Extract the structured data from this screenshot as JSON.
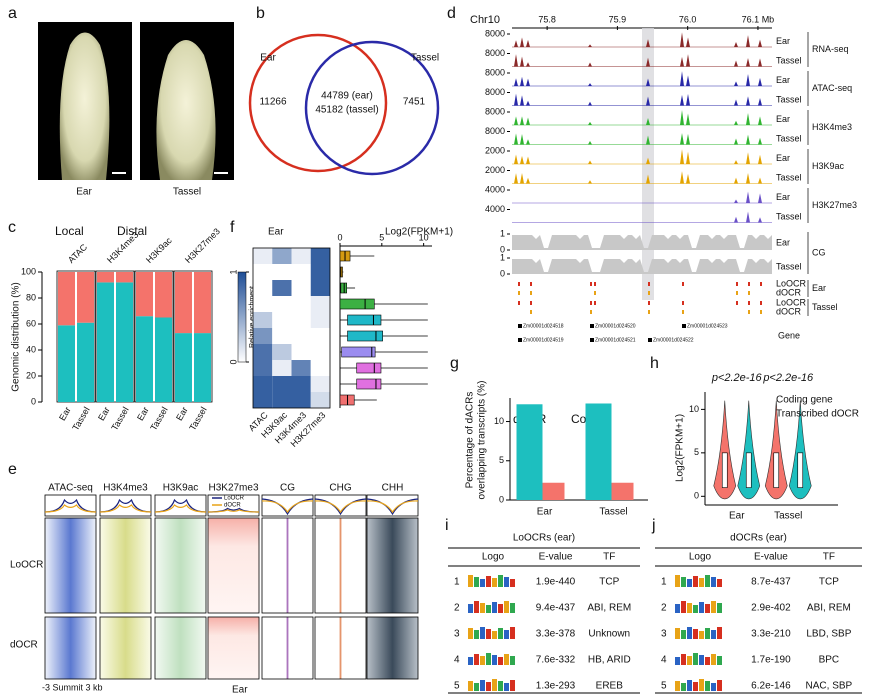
{
  "panel_labels": [
    "a",
    "b",
    "c",
    "d",
    "e",
    "f",
    "g",
    "h",
    "i",
    "j"
  ],
  "a": {
    "labels": [
      "Ear",
      "Tassel"
    ]
  },
  "b": {
    "sets": [
      "Ear",
      "Tassel"
    ],
    "left_only": 11266,
    "shared": [
      "44789 (ear)",
      "45182 (tassel)"
    ],
    "right_only": 7451
  },
  "c": {
    "type": "bar",
    "stacked": true,
    "ylabel": "Genomic distribution (%)",
    "groups": [
      "ATAC",
      "H3K4me3",
      "H3K9ac",
      "H3K27me3"
    ],
    "categories": [
      "Ear",
      "Tassel",
      "Ear",
      "Tassel",
      "Ear",
      "Tassel",
      "Ear",
      "Tassel"
    ],
    "series": [
      {
        "name": "Local",
        "color": "#1dbfbf",
        "values": [
          59,
          61,
          92,
          92,
          66,
          65,
          53,
          53
        ]
      },
      {
        "name": "Distal",
        "color": "#f4736b",
        "values": [
          41,
          39,
          8,
          8,
          34,
          35,
          47,
          47
        ]
      }
    ],
    "ylim": [
      0,
      100
    ],
    "yticks": [
      0,
      20,
      40,
      60,
      80,
      100
    ]
  },
  "d": {
    "chromosome": "Chr10",
    "xlim": [
      75.75,
      76.12
    ],
    "xticks": [
      75.8,
      75.9,
      {
        "value": 76.0,
        "label": "76.0"
      },
      {
        "value": 76.1,
        "label": "76.1 Mb"
      }
    ],
    "groups": [
      {
        "name": "RNA-seq",
        "samples": [
          "Ear",
          "Tassel"
        ],
        "ymax": [
          8000,
          8000
        ],
        "color": "#8b2a2a"
      },
      {
        "name": "ATAC-seq",
        "samples": [
          "Ear",
          "Tassel"
        ],
        "ymax": [
          8000,
          8000
        ],
        "color": "#2828a8"
      },
      {
        "name": "H3K4me3",
        "samples": [
          "Ear",
          "Tassel"
        ],
        "ymax": [
          8000,
          8000
        ],
        "color": "#30b530"
      },
      {
        "name": "H3K9ac",
        "samples": [
          "Ear",
          "Tassel"
        ],
        "ymax": [
          2000,
          2000
        ],
        "color": "#e3a400"
      },
      {
        "name": "H3K27me3",
        "samples": [
          "Ear",
          "Tassel"
        ],
        "ymax": [
          4000,
          4000
        ],
        "color": "#6a50c8"
      },
      {
        "name": "CG",
        "samples": [
          "Ear",
          "Tassel"
        ],
        "ymax": [
          1,
          1
        ],
        "ymin": [
          0,
          0
        ],
        "color": "#c8c8c8"
      }
    ],
    "ocr": {
      "rows": [
        "LoOCR",
        "dOCR",
        "LoOCR",
        "dOCR"
      ],
      "samples": [
        "Ear",
        "Tassel"
      ]
    },
    "gene_label": "Gene",
    "genes": [
      "Zm00001d024518",
      "Zm00001d024520",
      "Zm00001d024523",
      "Zm00001d024519",
      "Zm00001d024521",
      "Zm00001d024522"
    ]
  },
  "e": {
    "columns": [
      "ATAC-seq",
      "H3K4me3",
      "H3K9ac",
      "H3K27me3",
      "CG",
      "CHG",
      "CHH"
    ],
    "rows": [
      "LoOCR",
      "dOCR"
    ],
    "legend": [
      {
        "name": "LoOCR",
        "color": "#1a237e"
      },
      {
        "name": "dOCR",
        "color": "#e8a317"
      }
    ],
    "x_axis": "-3 Summit 3 kb",
    "sample": "Ear"
  },
  "f": {
    "sample": "Ear",
    "colorbar_label": "Relative enrichment",
    "colorbar_ticks": [
      0,
      1
    ],
    "marks": [
      "ATAC",
      "H3K9ac",
      "H3K4me3",
      "H3K27me3"
    ],
    "matrix": [
      [
        0.1,
        0.5,
        0.1,
        0.9
      ],
      [
        0,
        0,
        0,
        0.9
      ],
      [
        0,
        0.8,
        0,
        0.9
      ],
      [
        0,
        0,
        0,
        0.1
      ],
      [
        0.3,
        0,
        0,
        0.1
      ],
      [
        0.6,
        0,
        0,
        0
      ],
      [
        0.8,
        0.3,
        0,
        0
      ],
      [
        0.8,
        0.1,
        0.7,
        0
      ],
      [
        0.9,
        0.9,
        0.9,
        0.1
      ],
      [
        0.9,
        0.9,
        0.9,
        0.2
      ]
    ],
    "box_axis": "Log2(FPKM+1)",
    "xlim": [
      0,
      11
    ],
    "xticks": [
      0,
      5,
      10
    ],
    "boxes": [
      {
        "color": "#d49a10",
        "min": 0,
        "q1": 0,
        "median": 0.6,
        "q3": 1.2,
        "max": 4.1
      },
      {
        "color": "#d49a10",
        "min": 0,
        "q1": 0,
        "median": 0.1,
        "q3": 0.3,
        "max": 0.4
      },
      {
        "color": "#3cb043",
        "min": 0,
        "q1": 0.1,
        "median": 0.5,
        "q3": 0.8,
        "max": 1.8
      },
      {
        "color": "#3cb043",
        "min": 0,
        "q1": 0,
        "median": 3,
        "q3": 4.1,
        "max": 10.5
      },
      {
        "color": "#1fb8c8",
        "min": 0,
        "q1": 0.9,
        "median": 4,
        "q3": 4.9,
        "max": 10.5
      },
      {
        "color": "#1fb8c8",
        "min": 0,
        "q1": 0.9,
        "median": 4.3,
        "q3": 5.1,
        "max": 10.5
      },
      {
        "color": "#9b8cf0",
        "min": 0,
        "q1": 0.2,
        "median": 3.8,
        "q3": 4.2,
        "max": 10.5
      },
      {
        "color": "#e070e0",
        "min": 0,
        "q1": 2,
        "median": 4.1,
        "q3": 4.9,
        "max": 10.5
      },
      {
        "color": "#e070e0",
        "min": 0,
        "q1": 2,
        "median": 4.3,
        "q3": 4.9,
        "max": 10.5
      },
      {
        "color": "#f07070",
        "min": 0,
        "q1": 0,
        "median": 0.9,
        "q3": 1.7,
        "max": 4.4
      }
    ]
  },
  "g": {
    "type": "bar",
    "ylabel": [
      "Percentage of dACRs",
      "overlapping transcripts (%)"
    ],
    "categories": [
      "Ear",
      "Tassel"
    ],
    "series": [
      {
        "name": "dOCR",
        "color": "#1dbfbf",
        "values": [
          12.2,
          12.3
        ]
      },
      {
        "name": "Control",
        "color": "#f4736b",
        "values": [
          2.2,
          2.2
        ]
      }
    ],
    "ylim": [
      0,
      13
    ],
    "yticks": [
      0,
      5,
      10
    ]
  },
  "h": {
    "type": "violin",
    "annotations": [
      "p<2.2e-16",
      "p<2.2e-16"
    ],
    "ylabel": "Log2(FPKM+1)",
    "categories": [
      "Ear",
      "Tassel"
    ],
    "legend": [
      {
        "name": "Coding gene",
        "color": "#f4736b"
      },
      {
        "name": "Transcribed dOCR",
        "color": "#1dbfbf"
      }
    ],
    "ylim": [
      -1,
      12
    ],
    "yticks": [
      0,
      5,
      10
    ]
  },
  "i": {
    "title": "LoOCRs (ear)",
    "headers": [
      "Logo",
      "E-value",
      "TF"
    ],
    "rows": [
      [
        1,
        "1.9e-440",
        "TCP"
      ],
      [
        2,
        "9.4e-437",
        "ABI, REM"
      ],
      [
        3,
        "3.3e-378",
        "Unknown"
      ],
      [
        4,
        "7.6e-332",
        "HB, ARID"
      ],
      [
        5,
        "1.3e-293",
        "EREB"
      ]
    ]
  },
  "j": {
    "title": "dOCRs (ear)",
    "headers": [
      "Logo",
      "E-value",
      "TF"
    ],
    "rows": [
      [
        1,
        "8.7e-437",
        "TCP"
      ],
      [
        2,
        "2.9e-402",
        "ABI, REM"
      ],
      [
        3,
        "3.3e-210",
        "LBD, SBP"
      ],
      [
        4,
        "1.7e-190",
        "BPC"
      ],
      [
        5,
        "6.2e-146",
        "NAC, SBP"
      ]
    ]
  }
}
